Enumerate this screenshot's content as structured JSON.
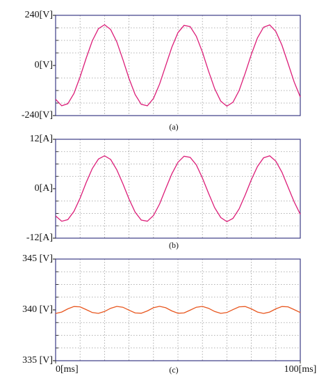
{
  "chart_data": [
    {
      "type": "line",
      "caption": "(a)",
      "color": "#dc1d78",
      "x": [
        0,
        2.5,
        5,
        7.5,
        10,
        12.5,
        15,
        17.5,
        20,
        22.5,
        25,
        27.5,
        30,
        32.5,
        35,
        37.5,
        40,
        42.5,
        45,
        47.5,
        50,
        52.5,
        55,
        57.5,
        60,
        62.5,
        65,
        67.5,
        70,
        72.5,
        75,
        77.5,
        80,
        82.5,
        85,
        87.5,
        90,
        92.5,
        95,
        97.5,
        100
      ],
      "values": [
        -162,
        -193,
        -183,
        -134,
        -55,
        35,
        118,
        176,
        195,
        172,
        113,
        28,
        -62,
        -139,
        -186,
        -193,
        -158,
        -89,
        -1,
        87,
        157,
        192,
        186,
        140,
        64,
        -27,
        -111,
        -171,
        -195,
        -176,
        -120,
        -37,
        53,
        132,
        183,
        194,
        163,
        97,
        10,
        -79,
        -151
      ],
      "xlim": [
        0,
        100
      ],
      "ylim": [
        -240,
        240
      ],
      "yticks": [
        {
          "value": 240,
          "label": "240[V]"
        },
        {
          "value": 0,
          "label": "0[V]"
        },
        {
          "value": -240,
          "label": "-240[V]"
        }
      ],
      "x_gridlines": [
        10,
        20,
        30,
        40,
        50,
        60,
        70,
        80,
        90
      ],
      "y_gridlines": [
        -180,
        -120,
        -60,
        60,
        120,
        180
      ]
    },
    {
      "type": "line",
      "caption": "(b)",
      "color": "#dc1d78",
      "x": [
        0,
        2.5,
        5,
        7.5,
        10,
        12.5,
        15,
        17.5,
        20,
        22.5,
        25,
        27.5,
        30,
        32.5,
        35,
        37.5,
        40,
        42.5,
        45,
        47.5,
        50,
        52.5,
        55,
        57.5,
        60,
        62.5,
        65,
        67.5,
        70,
        72.5,
        75,
        77.5,
        80,
        82.5,
        85,
        87.5,
        90,
        92.5,
        95,
        97.5,
        100
      ],
      "values": [
        -6.6,
        -7.9,
        -7.5,
        -5.5,
        -2.3,
        1.5,
        4.9,
        7.2,
        8,
        7.1,
        4.6,
        1.2,
        -2.5,
        -5.7,
        -7.6,
        -7.9,
        -6.5,
        -3.7,
        0,
        3.6,
        6.4,
        7.9,
        7.6,
        5.8,
        2.6,
        -1.1,
        -4.6,
        -7,
        -8,
        -7.2,
        -4.9,
        -1.5,
        2.2,
        5.4,
        7.5,
        8,
        6.7,
        4,
        0.4,
        -3.2,
        -6.2
      ],
      "xlim": [
        0,
        100
      ],
      "ylim": [
        -12,
        12
      ],
      "yticks": [
        {
          "value": 12,
          "label": "12[A]"
        },
        {
          "value": 0,
          "label": "0[A]"
        },
        {
          "value": -12,
          "label": "-12[A]"
        }
      ],
      "x_gridlines": [
        10,
        20,
        30,
        40,
        50,
        60,
        70,
        80,
        90
      ],
      "y_gridlines": [
        -9,
        -6,
        -3,
        3,
        6,
        9
      ]
    },
    {
      "type": "line",
      "caption": "(c)",
      "color": "#e8561e",
      "x": [
        0,
        2.5,
        5,
        7.5,
        10,
        12.5,
        15,
        17.5,
        20,
        22.5,
        25,
        27.5,
        30,
        32.5,
        35,
        37.5,
        40,
        42.5,
        45,
        47.5,
        50,
        52.5,
        55,
        57.5,
        60,
        62.5,
        65,
        67.5,
        70,
        72.5,
        75,
        77.5,
        80,
        82.5,
        85,
        87.5,
        90,
        92.5,
        95,
        97.5,
        100
      ],
      "values": [
        339.65,
        339.79,
        340.1,
        340.33,
        340.3,
        340.03,
        339.74,
        339.66,
        339.84,
        340.16,
        340.34,
        340.26,
        339.97,
        339.7,
        339.67,
        339.9,
        340.21,
        340.35,
        340.21,
        339.9,
        339.67,
        339.7,
        339.97,
        340.26,
        340.34,
        340.16,
        339.84,
        339.66,
        339.74,
        340.03,
        340.3,
        340.33,
        340.1,
        339.79,
        339.65,
        339.79,
        340.1,
        340.33,
        340.3,
        340.03,
        339.74
      ],
      "xlim": [
        0,
        100
      ],
      "ylim": [
        335,
        345
      ],
      "yticks": [
        {
          "value": 345,
          "label": "345 [V]"
        },
        {
          "value": 340,
          "label": "340 [V]"
        },
        {
          "value": 335,
          "label": "335 [V]"
        }
      ],
      "xticks": [
        {
          "value": 0,
          "label": "0[ms]"
        },
        {
          "value": 100,
          "label": "100[ms]"
        }
      ],
      "x_gridlines": [
        10,
        20,
        30,
        40,
        50,
        60,
        70,
        80,
        90
      ],
      "y_gridlines": [
        336.25,
        337.5,
        338.75,
        341.25,
        342.5,
        343.75
      ]
    }
  ]
}
